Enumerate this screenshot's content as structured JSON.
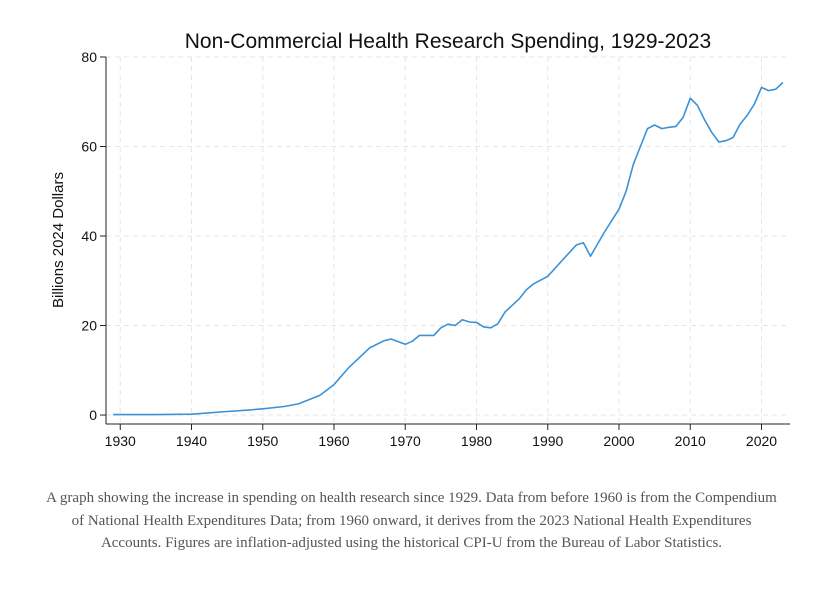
{
  "chart_data": {
    "type": "line",
    "title": "Non-Commercial Health Research Spending, 1929-2023",
    "xlabel": "",
    "ylabel": "Billions 2024 Dollars",
    "xlim": [
      1928,
      2024
    ],
    "ylim": [
      -2,
      80
    ],
    "x_ticks": [
      1930,
      1940,
      1950,
      1960,
      1970,
      1980,
      1990,
      2000,
      2010,
      2020
    ],
    "y_ticks": [
      0,
      20,
      40,
      60,
      80
    ],
    "grid": true,
    "legend": "none",
    "series": [
      {
        "color": "#3b92d6",
        "points": [
          [
            1929,
            0.1
          ],
          [
            1935,
            0.1
          ],
          [
            1940,
            0.2
          ],
          [
            1945,
            0.8
          ],
          [
            1948,
            1.1
          ],
          [
            1950,
            1.4
          ],
          [
            1953,
            1.9
          ],
          [
            1955,
            2.5
          ],
          [
            1958,
            4.4
          ],
          [
            1960,
            6.8
          ],
          [
            1962,
            10.5
          ],
          [
            1965,
            15.0
          ],
          [
            1967,
            16.6
          ],
          [
            1968,
            17.0
          ],
          [
            1970,
            15.8
          ],
          [
            1971,
            16.5
          ],
          [
            1972,
            17.8
          ],
          [
            1974,
            17.8
          ],
          [
            1975,
            19.5
          ],
          [
            1976,
            20.3
          ],
          [
            1977,
            20.0
          ],
          [
            1978,
            21.3
          ],
          [
            1979,
            20.8
          ],
          [
            1980,
            20.7
          ],
          [
            1981,
            19.7
          ],
          [
            1982,
            19.5
          ],
          [
            1983,
            20.4
          ],
          [
            1984,
            23.0
          ],
          [
            1985,
            24.5
          ],
          [
            1986,
            26.0
          ],
          [
            1987,
            28.0
          ],
          [
            1988,
            29.3
          ],
          [
            1990,
            31.0
          ],
          [
            1992,
            34.5
          ],
          [
            1994,
            38.0
          ],
          [
            1995,
            38.5
          ],
          [
            1996,
            35.5
          ],
          [
            1998,
            41.0
          ],
          [
            2000,
            46.0
          ],
          [
            2001,
            50.0
          ],
          [
            2002,
            56.0
          ],
          [
            2003,
            60.0
          ],
          [
            2004,
            64.0
          ],
          [
            2005,
            64.8
          ],
          [
            2006,
            64.0
          ],
          [
            2007,
            64.3
          ],
          [
            2008,
            64.5
          ],
          [
            2009,
            66.5
          ],
          [
            2010,
            70.8
          ],
          [
            2011,
            69.2
          ],
          [
            2012,
            66.0
          ],
          [
            2013,
            63.2
          ],
          [
            2014,
            61.0
          ],
          [
            2015,
            61.3
          ],
          [
            2016,
            62.0
          ],
          [
            2017,
            65.0
          ],
          [
            2018,
            67.0
          ],
          [
            2019,
            69.5
          ],
          [
            2020,
            73.2
          ],
          [
            2021,
            72.5
          ],
          [
            2022,
            72.8
          ],
          [
            2023,
            74.3
          ]
        ]
      }
    ]
  },
  "caption": "A graph showing the increase in spending on health research since 1929. Data from before 1960 is from the Compendium of National Health Expenditures Data; from 1960 onward, it derives from the 2023 National Health Expenditures Accounts. Figures are inflation-adjusted using the historical CPI-U from the Bureau of Labor Statistics."
}
